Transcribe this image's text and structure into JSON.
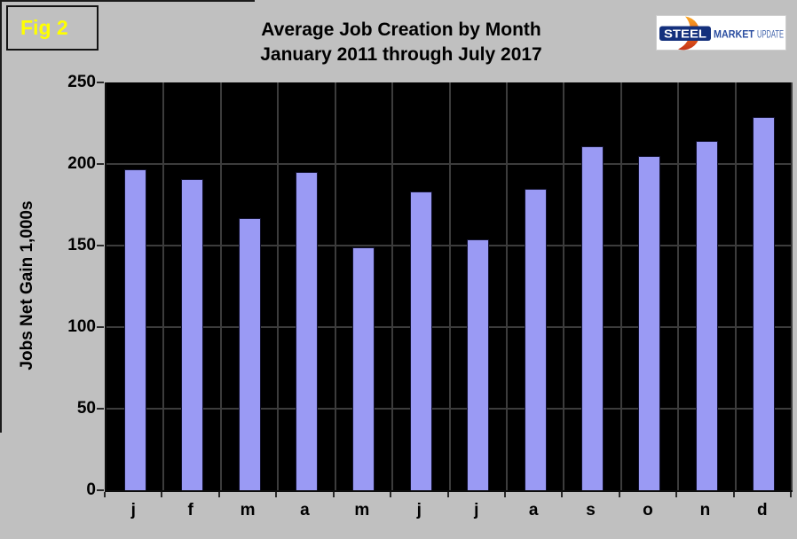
{
  "figure_label": "Fig 2",
  "title": {
    "line1": "Average Job Creation by Month",
    "line2": "January 2011 through July 2017"
  },
  "logo": {
    "steel": "STEEL",
    "market": "MARKET",
    "update": "UPDATE"
  },
  "chart_data": {
    "type": "bar",
    "title": "Average Job Creation by Month January 2011 through July 2017",
    "categories": [
      "j",
      "f",
      "m",
      "a",
      "m",
      "j",
      "j",
      "a",
      "s",
      "o",
      "n",
      "d"
    ],
    "values": [
      197,
      191,
      167,
      195,
      149,
      183,
      154,
      185,
      211,
      205,
      214,
      229
    ],
    "xlabel": "",
    "ylabel": "Jobs Net Gain 1,000s",
    "ylim": [
      0,
      250
    ],
    "yticks": [
      0,
      50,
      100,
      150,
      200,
      250
    ],
    "grid": true,
    "legend": "none",
    "plot_background": "#000000",
    "page_background": "#c0c0c0",
    "bar_fill": "#9a9af4",
    "bar_border": "#12122e",
    "gridline_color": "#3c3c3c",
    "figure_label_color": "#ffff00"
  }
}
